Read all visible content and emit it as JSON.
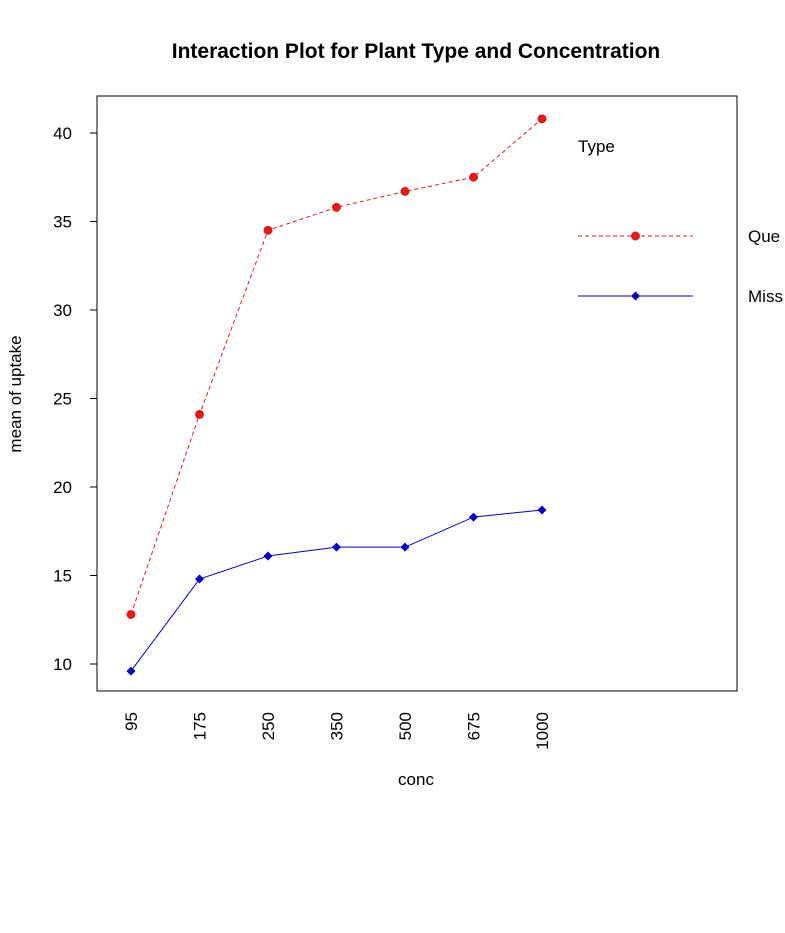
{
  "chart_data": {
    "type": "line",
    "title": "Interaction Plot for Plant Type and Concentration",
    "xlabel": "conc",
    "ylabel": "mean of  uptake",
    "categories": [
      "95",
      "175",
      "250",
      "350",
      "500",
      "675",
      "1000"
    ],
    "ylim": [
      8.5,
      42
    ],
    "yticks": [
      10,
      15,
      20,
      25,
      30,
      35,
      40
    ],
    "grid": false,
    "legend": {
      "title": "Type",
      "position": "right"
    },
    "series": [
      {
        "name": "Que",
        "values": [
          12.8,
          24.1,
          34.5,
          35.8,
          36.7,
          37.5,
          40.8
        ],
        "color": "#e31a1c",
        "line": "dashed",
        "marker": "circle"
      },
      {
        "name": "Miss",
        "values": [
          9.6,
          14.8,
          16.1,
          16.6,
          16.6,
          18.3,
          18.7
        ],
        "color": "#0000cd",
        "line": "solid",
        "marker": "diamond"
      }
    ]
  }
}
